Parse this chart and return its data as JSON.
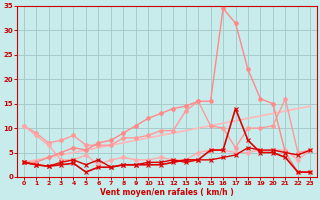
{
  "xlabel": "Vent moyen/en rafales ( km/h )",
  "background_color": "#c8ecec",
  "grid_color": "#a8cccc",
  "x_values": [
    0,
    1,
    2,
    3,
    4,
    5,
    6,
    7,
    8,
    9,
    10,
    11,
    12,
    13,
    14,
    15,
    16,
    17,
    18,
    19,
    20,
    21,
    22,
    23
  ],
  "series": [
    {
      "data": [
        3.0,
        3.5,
        4.0,
        4.5,
        5.0,
        5.5,
        6.0,
        6.5,
        7.0,
        7.5,
        8.0,
        8.5,
        9.0,
        9.5,
        10.0,
        10.5,
        11.0,
        11.5,
        12.0,
        12.5,
        13.0,
        13.5,
        14.0,
        14.5
      ],
      "color": "#ffb8b8",
      "lw": 1.2,
      "marker": null,
      "ms": 0
    },
    {
      "data": [
        10.5,
        9.0,
        7.0,
        7.5,
        8.5,
        6.5,
        6.5,
        6.5,
        8.0,
        8.0,
        8.5,
        9.5,
        9.5,
        13.5,
        15.5,
        10.5,
        10.0,
        6.0,
        10.0,
        10.0,
        10.5,
        16.0,
        5.0,
        5.5
      ],
      "color": "#ff9999",
      "lw": 1.0,
      "marker": "o",
      "ms": 2.5
    },
    {
      "data": [
        10.5,
        8.5,
        6.5,
        3.5,
        3.5,
        4.5,
        2.5,
        3.5,
        4.0,
        3.5,
        3.5,
        4.0,
        3.5,
        3.5,
        5.0,
        5.5,
        5.5,
        5.0,
        5.0,
        5.5,
        5.5,
        5.5,
        3.5,
        5.5
      ],
      "color": "#ffaaaa",
      "lw": 1.0,
      "marker": "o",
      "ms": 2.5
    },
    {
      "data": [
        3.0,
        3.0,
        4.0,
        5.0,
        6.0,
        5.5,
        7.0,
        7.5,
        9.0,
        10.5,
        12.0,
        13.0,
        14.0,
        14.5,
        15.5,
        15.5,
        34.5,
        31.5,
        22.0,
        16.0,
        15.0,
        5.0,
        1.0,
        1.0
      ],
      "color": "#ff8888",
      "lw": 1.0,
      "marker": "o",
      "ms": 2.5
    },
    {
      "data": [
        3.0,
        2.5,
        2.2,
        2.5,
        2.8,
        1.0,
        2.0,
        2.0,
        2.5,
        2.5,
        2.5,
        2.5,
        3.0,
        3.5,
        3.5,
        5.5,
        5.5,
        14.0,
        7.5,
        5.0,
        5.0,
        4.0,
        1.0,
        1.0
      ],
      "color": "#dd0000",
      "lw": 1.2,
      "marker": "x",
      "ms": 3
    },
    {
      "data": [
        3.0,
        2.5,
        2.2,
        3.0,
        3.5,
        2.5,
        3.5,
        2.0,
        2.5,
        2.5,
        3.0,
        3.0,
        3.5,
        3.0,
        3.5,
        3.5,
        4.0,
        4.5,
        6.0,
        5.5,
        5.5,
        5.0,
        4.5,
        5.5
      ],
      "color": "#dd0000",
      "lw": 1.0,
      "marker": "x",
      "ms": 3
    }
  ],
  "ylim": [
    0,
    35
  ],
  "yticks": [
    0,
    5,
    10,
    15,
    20,
    25,
    30,
    35
  ],
  "xlim": [
    -0.5,
    23.5
  ],
  "xticks": [
    0,
    1,
    2,
    3,
    4,
    5,
    6,
    7,
    8,
    9,
    10,
    11,
    12,
    13,
    14,
    15,
    16,
    17,
    18,
    19,
    20,
    21,
    22,
    23
  ],
  "tick_color": "#cc0000",
  "label_color": "#cc0000",
  "axes_color": "#cc0000"
}
